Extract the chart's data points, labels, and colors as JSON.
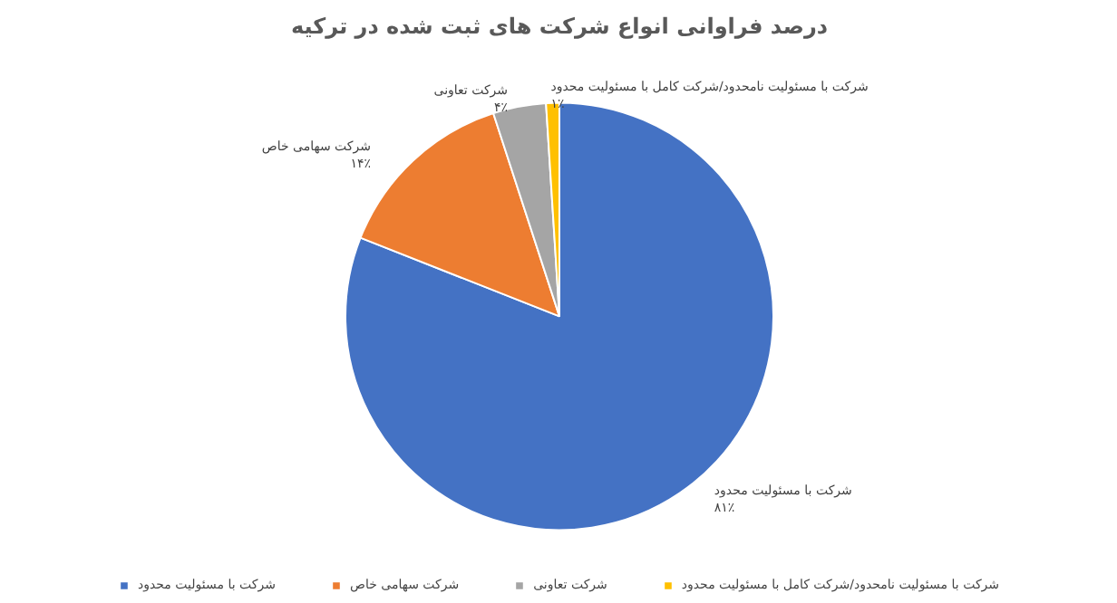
{
  "chart_data": {
    "type": "pie",
    "title": "درصد فراوانی انواع شرکت های ثبت شده در ترکیه",
    "categories": [
      "شرکت با مسئولیت محدود",
      "شرکت سهامی خاص",
      "شرکت تعاونی",
      "شرکت با مسئولیت نامحدود/شرکت کامل با مسئولیت محدود"
    ],
    "values": [
      81,
      14,
      4,
      1
    ],
    "colors": [
      "#4472c4",
      "#ed7d31",
      "#a5a5a5",
      "#ffc000"
    ],
    "value_labels": [
      "۸۱٪",
      "۱۴٪",
      "۴٪",
      "۱٪"
    ],
    "legend": "bottom"
  }
}
